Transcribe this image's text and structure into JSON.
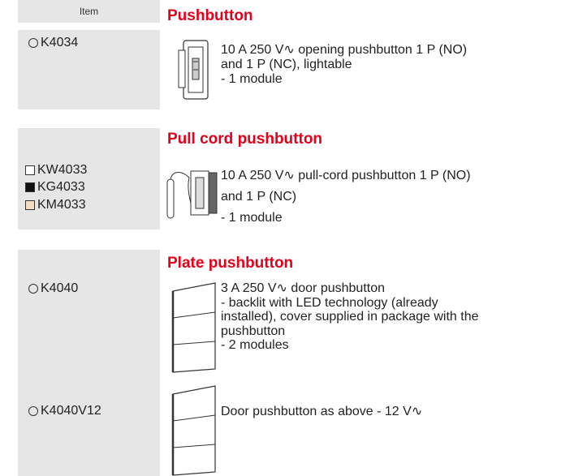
{
  "header": {
    "item": "Item"
  },
  "sections": [
    {
      "title": "Pushbutton",
      "items": [
        {
          "codes": [
            "K4034"
          ],
          "description": [
            "10 A 250 V∿ opening pushbutton 1 P (NO)",
            "and 1 P (NC), lightable",
            "- 1 module"
          ]
        }
      ]
    },
    {
      "title": "Pull cord pushbutton",
      "items": [
        {
          "codes": [
            "KW4033",
            "KG4033",
            "KM4033"
          ],
          "description": [
            "10 A 250 V∿ pull-cord pushbutton 1 P (NO)",
            "and 1 P (NC)",
            "- 1 module"
          ]
        }
      ]
    },
    {
      "title": "Plate pushbutton",
      "items": [
        {
          "codes": [
            "K4040"
          ],
          "description": [
            "3 A 250 V∿ door pushbutton",
            "- backlit with LED technology (already",
            "installed), cover supplied in package with the",
            "pushbutton",
            "- 2 modules"
          ]
        },
        {
          "codes": [
            "K4040V12"
          ],
          "description": [
            "Door pushbutton as above - 12 V∿"
          ]
        }
      ]
    }
  ]
}
